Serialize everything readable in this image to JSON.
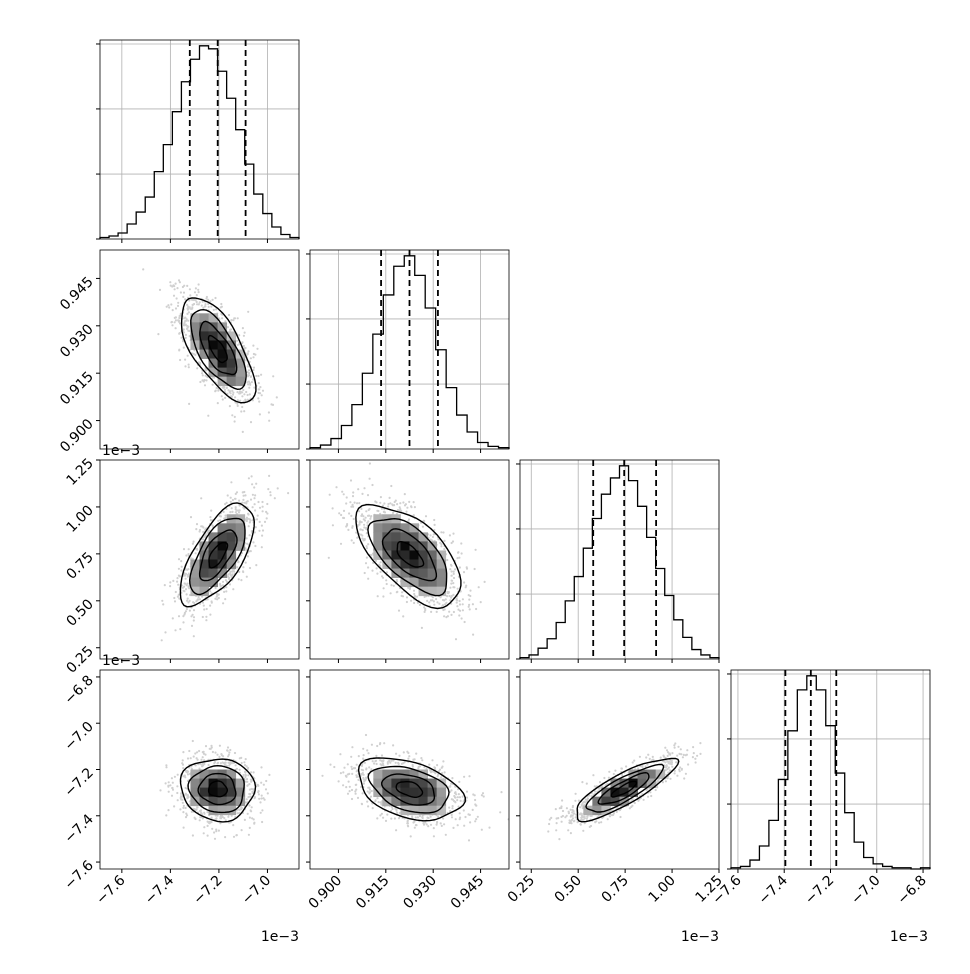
{
  "chart_data": {
    "type": "corner",
    "title": "",
    "style": {
      "hist_color": "#000000",
      "grid_color": "#b0b0b0",
      "quantile_line": "dashed",
      "grid": true
    },
    "params": [
      {
        "ticks": [
          "−7.6",
          "−7.4",
          "−7.2",
          "−7.0"
        ],
        "tick_values": [
          -7.6,
          -7.4,
          -7.2,
          -7.0
        ],
        "range": [
          -7.69,
          -6.87
        ],
        "offset": "1e−3",
        "quantiles": [
          -7.32,
          -7.205,
          -7.09
        ]
      },
      {
        "ticks": [
          "0.900",
          "0.915",
          "0.930",
          "0.945"
        ],
        "tick_values": [
          0.9,
          0.915,
          0.93,
          0.945
        ],
        "range": [
          0.891,
          0.954
        ],
        "offset": "",
        "quantiles": [
          0.9135,
          0.9225,
          0.9315
        ]
      },
      {
        "ticks": [
          "0.25",
          "0.50",
          "0.75",
          "1.00",
          "1.25"
        ],
        "tick_values": [
          0.25,
          0.5,
          0.75,
          1.0,
          1.25
        ],
        "range": [
          0.19,
          1.25
        ],
        "offset": "1e−3",
        "quantiles": [
          0.58,
          0.745,
          0.915
        ]
      },
      {
        "ticks": [
          "−7.6",
          "−7.4",
          "−7.2",
          "−7.0",
          "−6.8"
        ],
        "tick_values": [
          -7.6,
          -7.4,
          -7.2,
          -7.0,
          -6.8
        ],
        "range": [
          -7.63,
          -6.77
        ],
        "offset": "1e−3",
        "quantiles": [
          -7.395,
          -7.285,
          -7.175
        ]
      }
    ],
    "histograms": [
      {
        "param": 0,
        "counts": [
          1,
          2,
          4,
          10,
          18,
          28,
          45,
          63,
          85,
          105,
          120,
          129,
          127,
          112,
          94,
          73,
          50,
          30,
          17,
          8,
          3,
          1
        ]
      },
      {
        "param": 1,
        "counts": [
          1,
          3,
          8,
          18,
          34,
          58,
          88,
          118,
          140,
          148,
          133,
          108,
          76,
          47,
          26,
          13,
          5,
          2,
          1
        ]
      },
      {
        "param": 2,
        "counts": [
          1,
          3,
          8,
          15,
          27,
          43,
          61,
          82,
          104,
          122,
          134,
          143,
          132,
          113,
          90,
          67,
          47,
          29,
          16,
          7,
          3,
          1
        ]
      },
      {
        "param": 3,
        "counts": [
          1,
          2,
          7,
          18,
          38,
          70,
          108,
          140,
          151,
          140,
          112,
          75,
          44,
          21,
          9,
          4,
          2,
          1,
          1,
          0,
          1
        ]
      }
    ],
    "pairs": [
      {
        "x": 0,
        "y": 1,
        "center": [
          -7.205,
          0.9225
        ],
        "sd": [
          0.076,
          0.0083
        ],
        "rho": -0.67
      },
      {
        "x": 0,
        "y": 2,
        "center": [
          -7.205,
          0.745
        ],
        "sd": [
          0.076,
          0.135
        ],
        "rho": 0.66
      },
      {
        "x": 1,
        "y": 2,
        "center": [
          0.9225,
          0.745
        ],
        "sd": [
          0.0083,
          0.135
        ],
        "rho": -0.62
      },
      {
        "x": 0,
        "y": 3,
        "center": [
          -7.205,
          -7.285
        ],
        "sd": [
          0.076,
          0.067
        ],
        "rho": -0.05
      },
      {
        "x": 1,
        "y": 3,
        "center": [
          0.9225,
          -7.285
        ],
        "sd": [
          0.0083,
          0.067
        ],
        "rho": -0.38
      },
      {
        "x": 2,
        "y": 3,
        "center": [
          0.745,
          -7.285
        ],
        "sd": [
          0.135,
          0.067
        ],
        "rho": 0.83
      }
    ],
    "contour_levels": [
      0.5,
      1.0,
      1.5,
      2.0
    ]
  }
}
